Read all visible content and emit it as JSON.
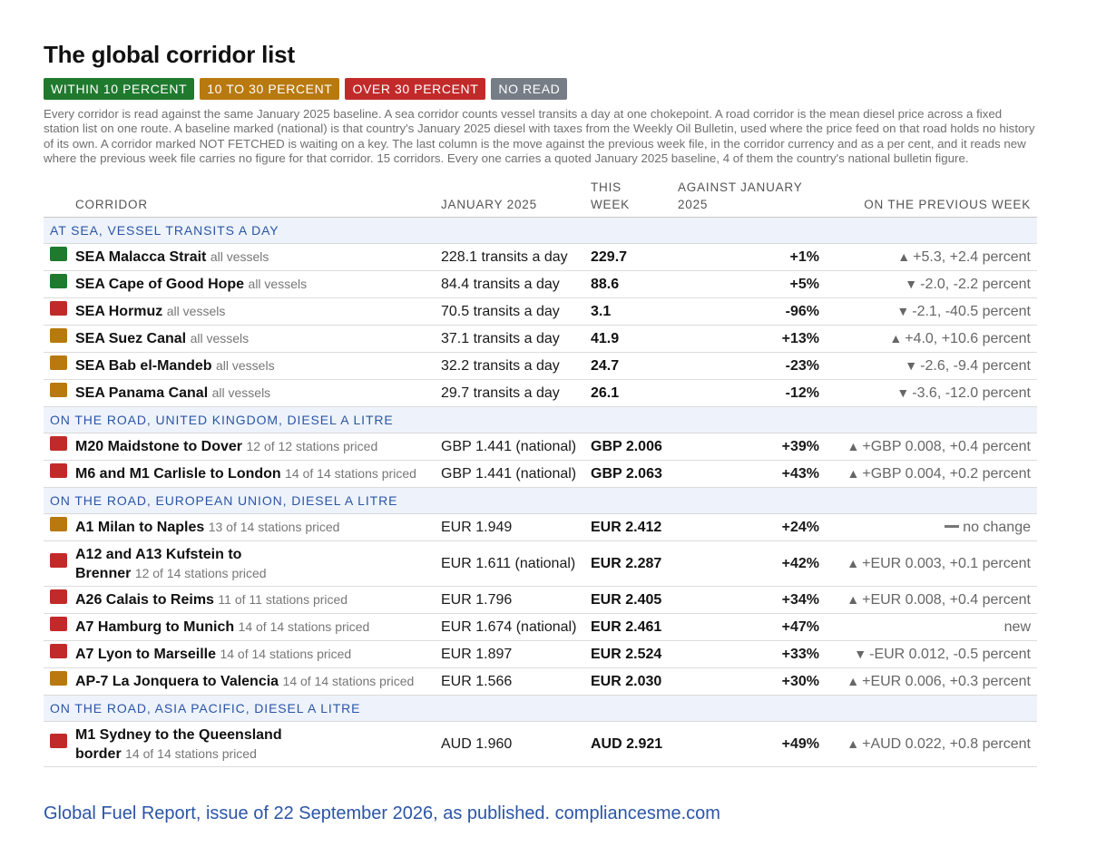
{
  "title": "The global corridor list",
  "legend": [
    {
      "label": "WITHIN 10 PERCENT",
      "color": "#1f7a2e"
    },
    {
      "label": "10 TO 30 PERCENT",
      "color": "#b8790f"
    },
    {
      "label": "OVER 30 PERCENT",
      "color": "#c22a2a"
    },
    {
      "label": "NO READ",
      "color": "#767d86"
    }
  ],
  "intro": "Every corridor is read against the same January 2025 baseline. A sea corridor counts vessel transits a day at one chokepoint. A road corridor is the mean diesel price across a fixed station list on one route. A baseline marked (national) is that country's January 2025 diesel with taxes from the Weekly Oil Bulletin, used where the price feed on that road holds no history of its own. A corridor marked NOT FETCHED is waiting on a key. The last column is the move against the previous week file, in the corridor currency and as a per cent, and it reads new where the previous week file carries no figure for that corridor. 15 corridors. Every one carries a quoted January 2025 baseline, 4 of them the country's national bulletin figure.",
  "table": {
    "headers": {
      "corridor": "CORRIDOR",
      "baseline": "JANUARY 2025",
      "week_line1": "THIS",
      "week_line2": "WEEK",
      "against_line1": "AGAINST JANUARY",
      "against_line2": "2025",
      "prev": "ON THE PREVIOUS WEEK"
    },
    "groups": [
      {
        "label": "AT SEA, VESSEL TRANSITS A DAY",
        "rows": [
          {
            "status": "green",
            "name": "SEA Malacca Strait",
            "sub": "all vessels",
            "baseline": "228.1 transits a day",
            "week": "229.7",
            "against": "+1%",
            "dir": "up",
            "prev": "+5.3, +2.4 percent"
          },
          {
            "status": "green",
            "name": "SEA Cape of Good Hope",
            "sub": "all vessels",
            "baseline": "84.4 transits a day",
            "week": "88.6",
            "against": "+5%",
            "dir": "down",
            "prev": "-2.0, -2.2 percent"
          },
          {
            "status": "red",
            "name": "SEA Hormuz",
            "sub": "all vessels",
            "baseline": "70.5 transits a day",
            "week": "3.1",
            "against": "-96%",
            "dir": "down",
            "prev": "-2.1, -40.5 percent"
          },
          {
            "status": "amber",
            "name": "SEA Suez Canal",
            "sub": "all vessels",
            "baseline": "37.1 transits a day",
            "week": "41.9",
            "against": "+13%",
            "dir": "up",
            "prev": "+4.0, +10.6 percent"
          },
          {
            "status": "amber",
            "name": "SEA Bab el-Mandeb",
            "sub": "all vessels",
            "baseline": "32.2 transits a day",
            "week": "24.7",
            "against": "-23%",
            "dir": "down",
            "prev": "-2.6, -9.4 percent"
          },
          {
            "status": "amber",
            "name": "SEA Panama Canal",
            "sub": "all vessels",
            "baseline": "29.7 transits a day",
            "week": "26.1",
            "against": "-12%",
            "dir": "down",
            "prev": "-3.6, -12.0 percent"
          }
        ]
      },
      {
        "label": "ON THE ROAD, UNITED KINGDOM, DIESEL A LITRE",
        "rows": [
          {
            "status": "red",
            "name": "M20 Maidstone to Dover",
            "sub": "12 of 12 stations priced",
            "baseline": "GBP 1.441 (national)",
            "week": "GBP 2.006",
            "against": "+39%",
            "dir": "up",
            "prev": "+GBP 0.008, +0.4 percent"
          },
          {
            "status": "red",
            "name": "M6 and M1 Carlisle to London",
            "sub": "14 of 14 stations priced",
            "baseline": "GBP 1.441 (national)",
            "week": "GBP 2.063",
            "against": "+43%",
            "dir": "up",
            "prev": "+GBP 0.004, +0.2 percent"
          }
        ]
      },
      {
        "label": "ON THE ROAD, EUROPEAN UNION, DIESEL A LITRE",
        "rows": [
          {
            "status": "amber",
            "name": "A1 Milan to Naples",
            "sub": "13 of 14 stations priced",
            "baseline": "EUR 1.949",
            "week": "EUR 2.412",
            "against": "+24%",
            "dir": "flat",
            "prev": "no change"
          },
          {
            "status": "red",
            "name": "A12 and A13 Kufstein to Brenner",
            "sub": "12 of 14 stations priced",
            "baseline": "EUR 1.611 (national)",
            "week": "EUR 2.287",
            "against": "+42%",
            "dir": "up",
            "prev": "+EUR 0.003, +0.1 percent",
            "tall": true
          },
          {
            "status": "red",
            "name": "A26 Calais to Reims",
            "sub": "11 of 11 stations priced",
            "baseline": "EUR 1.796",
            "week": "EUR 2.405",
            "against": "+34%",
            "dir": "up",
            "prev": "+EUR 0.008, +0.4 percent"
          },
          {
            "status": "red",
            "name": "A7 Hamburg to Munich",
            "sub": "14 of 14 stations priced",
            "baseline": "EUR 1.674 (national)",
            "week": "EUR 2.461",
            "against": "+47%",
            "dir": "none",
            "prev": "new"
          },
          {
            "status": "red",
            "name": "A7 Lyon to Marseille",
            "sub": "14 of 14 stations priced",
            "baseline": "EUR 1.897",
            "week": "EUR 2.524",
            "against": "+33%",
            "dir": "down",
            "prev": "-EUR 0.012, -0.5 percent"
          },
          {
            "status": "amber",
            "name": "AP-7 La Jonquera to Valencia",
            "sub": "14 of 14 stations priced",
            "baseline": "EUR 1.566",
            "week": "EUR 2.030",
            "against": "+30%",
            "dir": "up",
            "prev": "+EUR 0.006, +0.3 percent"
          }
        ]
      },
      {
        "label": "ON THE ROAD, ASIA PACIFIC, DIESEL A LITRE",
        "rows": [
          {
            "status": "red",
            "name": "M1 Sydney to the Queensland border",
            "sub": "14 of 14 stations priced",
            "baseline": "AUD 1.960",
            "week": "AUD 2.921",
            "against": "+49%",
            "dir": "up",
            "prev": "+AUD 0.022, +0.8 percent",
            "tall": true
          }
        ]
      }
    ]
  },
  "colors": {
    "green": "#1f7a2e",
    "amber": "#b8790f",
    "red": "#c22a2a"
  },
  "icons": {
    "up": "triangle-up-icon",
    "down": "triangle-down-icon",
    "flat": "dash-icon"
  },
  "footer": "Global Fuel Report, issue of 22 September 2026, as published. compliancesme.com"
}
